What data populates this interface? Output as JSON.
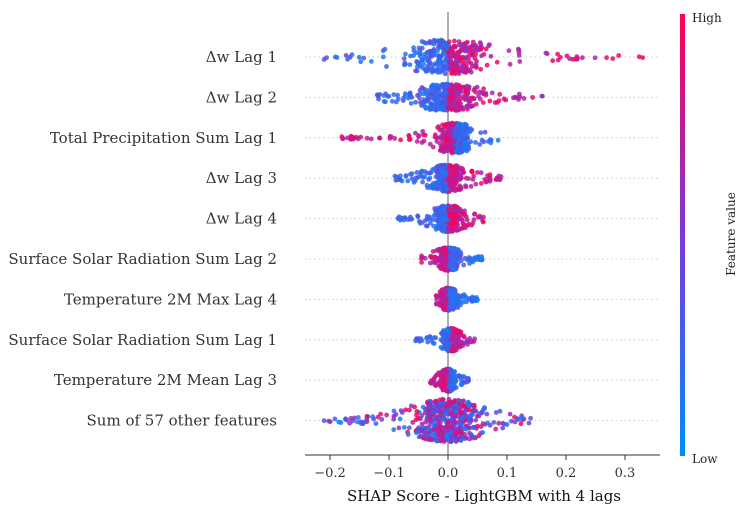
{
  "chart_data": {
    "type": "scatter",
    "subtype": "shap-beeswarm",
    "xlabel": "SHAP Score - LightGBM with 4 lags",
    "xlim": [
      -0.24,
      0.34
    ],
    "xticks": [
      -0.2,
      -0.1,
      0.0,
      0.1,
      0.2,
      0.3
    ],
    "xtick_labels": [
      "−0.2",
      "−0.1",
      "0.0",
      "0.1",
      "0.2",
      "0.3"
    ],
    "colorbar": {
      "label": "Feature value",
      "high": "High",
      "low": "Low",
      "high_color": "#ff0052",
      "low_color": "#008afb"
    },
    "features": [
      {
        "name": "Δw Lag 1",
        "min": -0.21,
        "max": 0.33,
        "center": 0.0,
        "spread": 0.07,
        "max_width": 16,
        "low_side": "negative"
      },
      {
        "name": "Δw Lag 2",
        "min": -0.12,
        "max": 0.16,
        "center": 0.0,
        "spread": 0.05,
        "max_width": 12,
        "low_side": "negative"
      },
      {
        "name": "Total Precipitation Sum Lag 1",
        "min": -0.18,
        "max": 0.085,
        "center": 0.01,
        "spread": 0.03,
        "max_width": 14,
        "low_side": "positive"
      },
      {
        "name": "Δw Lag 3",
        "min": -0.09,
        "max": 0.09,
        "center": 0.0,
        "spread": 0.03,
        "max_width": 12,
        "low_side": "negative"
      },
      {
        "name": "Δw Lag 4",
        "min": -0.085,
        "max": 0.06,
        "center": 0.0,
        "spread": 0.025,
        "max_width": 12,
        "low_side": "negative"
      },
      {
        "name": "Surface Solar Radiation Sum Lag 2",
        "min": -0.045,
        "max": 0.058,
        "center": 0.0,
        "spread": 0.02,
        "max_width": 10,
        "low_side": "positive"
      },
      {
        "name": "Temperature 2M Max Lag 4",
        "min": -0.02,
        "max": 0.05,
        "center": 0.0,
        "spread": 0.015,
        "max_width": 10,
        "low_side": "positive"
      },
      {
        "name": "Surface Solar Radiation Sum Lag 1",
        "min": -0.055,
        "max": 0.045,
        "center": 0.005,
        "spread": 0.015,
        "max_width": 10,
        "low_side": "negative"
      },
      {
        "name": "Temperature 2M Mean Lag 3",
        "min": -0.03,
        "max": 0.035,
        "center": 0.0,
        "spread": 0.012,
        "max_width": 10,
        "low_side": "positive"
      },
      {
        "name": "Sum of 57 other features",
        "min": -0.21,
        "max": 0.14,
        "center": 0.0,
        "spread": 0.055,
        "max_width": 20,
        "low_side": "mixed"
      }
    ]
  }
}
